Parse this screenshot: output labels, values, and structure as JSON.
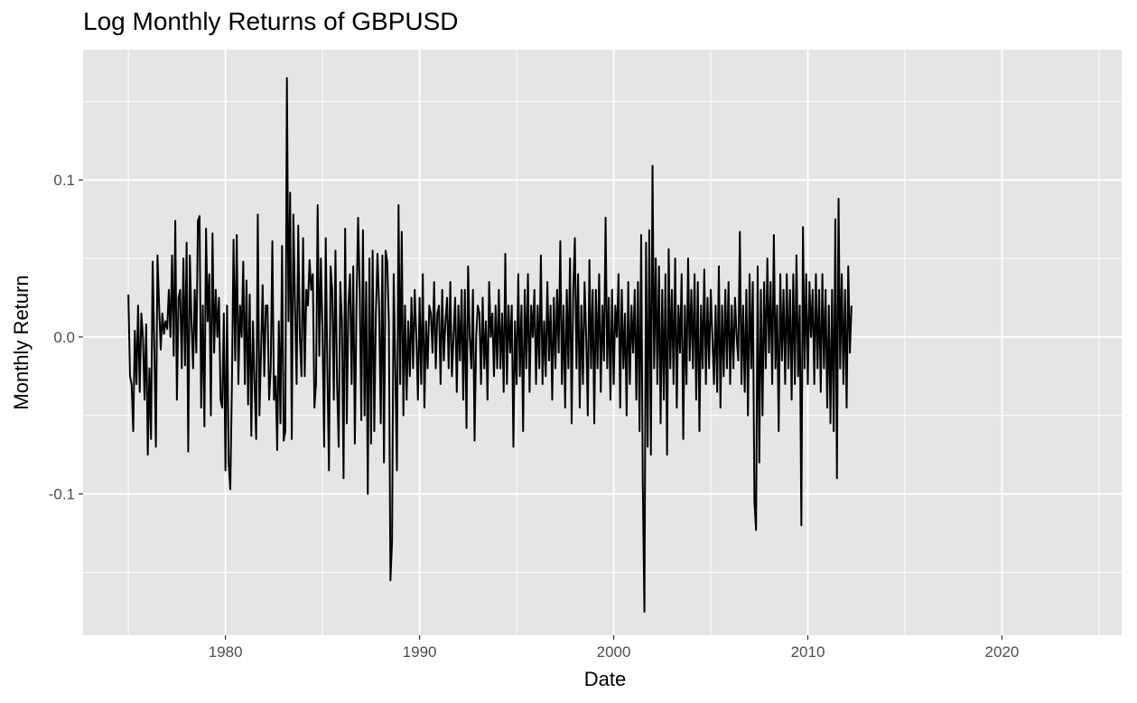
{
  "chart_data": {
    "type": "line",
    "title": "Log Monthly Returns of GBPUSD",
    "xlabel": "Date",
    "ylabel": "Monthly Return",
    "x_ticks": [
      "1980",
      "1990",
      "2000",
      "2010",
      "2020"
    ],
    "y_ticks": [
      "-0.1",
      "0.0",
      "0.1"
    ],
    "xlim": [
      "1972-09-01",
      "2026-03-01"
    ],
    "ylim": [
      -0.19,
      0.183
    ],
    "grid": true,
    "colors": {
      "panel": "#e5e5e5",
      "grid": "#ffffff",
      "line": "#000000",
      "tick_text": "#4d4d4d",
      "tick_mark": "#333333"
    },
    "series": [
      {
        "start": "1975-01",
        "values": [
          0.027,
          -0.025,
          -0.03,
          -0.06,
          0.004,
          -0.03,
          0.02,
          -0.035,
          0.015,
          0.0,
          -0.04,
          0.008,
          -0.075,
          -0.02,
          -0.065,
          0.048,
          -0.005,
          -0.07,
          0.052,
          0.02,
          -0.008,
          0.015,
          0.002,
          0.01,
          0.005,
          0.03,
          0.0,
          0.052,
          -0.012,
          0.074,
          -0.04,
          0.025,
          0.03,
          -0.02,
          0.05,
          -0.018,
          0.06,
          -0.073,
          0.052,
          0.01,
          -0.02,
          0.03,
          -0.01,
          0.074,
          0.077,
          -0.045,
          0.02,
          -0.057,
          0.069,
          0.01,
          0.04,
          -0.05,
          0.066,
          -0.01,
          0.03,
          0.0,
          0.025,
          -0.04,
          -0.045,
          0.015,
          -0.085,
          0.02,
          -0.08,
          -0.097,
          -0.03,
          0.062,
          -0.015,
          0.065,
          -0.03,
          0.02,
          0.0,
          0.048,
          -0.03,
          0.036,
          -0.043,
          0.027,
          -0.063,
          0.01,
          -0.03,
          -0.065,
          0.078,
          -0.05,
          -0.01,
          0.033,
          -0.025,
          0.02,
          0.02,
          -0.04,
          -0.02,
          0.061,
          -0.04,
          -0.025,
          -0.072,
          0.01,
          -0.055,
          0.058,
          -0.066,
          -0.06,
          0.165,
          0.01,
          0.092,
          -0.065,
          0.078,
          0.02,
          -0.03,
          0.071,
          0.0,
          -0.025,
          0.063,
          -0.025,
          0.03,
          0.02,
          0.049,
          0.03,
          0.04,
          -0.045,
          -0.03,
          0.084,
          -0.012,
          0.05,
          0.004,
          -0.07,
          0.063,
          -0.02,
          -0.085,
          0.045,
          0.03,
          -0.04,
          0.055,
          -0.03,
          -0.07,
          0.035,
          0.01,
          -0.09,
          0.069,
          -0.055,
          0.02,
          0.04,
          -0.03,
          0.045,
          -0.068,
          0.02,
          0.076,
          0.03,
          -0.053,
          0.068,
          -0.05,
          0.035,
          -0.1,
          0.05,
          -0.068,
          0.055,
          -0.06,
          0.015,
          0.053,
          0.02,
          -0.055,
          0.052,
          -0.08,
          0.055,
          0.048,
          0.01,
          -0.155,
          -0.13,
          0.04,
          -0.02,
          -0.085,
          0.084,
          -0.03,
          0.067,
          -0.05,
          0.02,
          -0.04,
          0.01,
          -0.025,
          0.025,
          -0.02,
          0.03,
          0.0,
          -0.04,
          0.025,
          -0.03,
          0.04,
          -0.045,
          0.01,
          -0.02,
          0.02,
          0.015,
          -0.01,
          0.035,
          -0.02,
          0.015,
          0.02,
          -0.03,
          0.03,
          -0.015,
          0.01,
          0.025,
          -0.02,
          0.035,
          -0.025,
          0.0,
          0.025,
          -0.035,
          0.02,
          -0.015,
          0.03,
          -0.04,
          0.03,
          -0.058,
          0.045,
          0.0,
          -0.02,
          0.03,
          -0.066,
          0.0,
          0.02,
          0.015,
          -0.03,
          0.025,
          -0.02,
          0.01,
          -0.04,
          0.035,
          0.0,
          0.015,
          -0.025,
          0.02,
          -0.02,
          0.03,
          -0.02,
          0.015,
          -0.035,
          0.053,
          -0.03,
          0.02,
          -0.01,
          0.02,
          -0.07,
          0.01,
          -0.03,
          0.04,
          -0.025,
          0.02,
          -0.06,
          0.03,
          -0.02,
          0.04,
          -0.035,
          0.02,
          0.0,
          0.03,
          -0.03,
          0.02,
          -0.02,
          0.052,
          -0.03,
          0.01,
          -0.025,
          0.035,
          -0.015,
          0.02,
          -0.04,
          0.025,
          -0.02,
          0.03,
          -0.01,
          0.061,
          -0.03,
          0.02,
          -0.045,
          0.03,
          -0.02,
          0.05,
          -0.055,
          0.03,
          0.063,
          -0.02,
          0.04,
          -0.045,
          0.02,
          -0.03,
          0.035,
          0.0,
          -0.05,
          0.049,
          -0.02,
          0.03,
          -0.055,
          0.03,
          -0.02,
          0.04,
          -0.035,
          0.02,
          -0.015,
          0.076,
          -0.02,
          0.025,
          -0.04,
          0.03,
          -0.03,
          0.02,
          0.0,
          0.04,
          -0.045,
          0.03,
          -0.02,
          0.015,
          -0.05,
          0.035,
          -0.03,
          0.02,
          -0.01,
          0.03,
          -0.04,
          0.035,
          -0.06,
          0.065,
          -0.095,
          -0.175,
          0.06,
          -0.07,
          0.068,
          -0.075,
          0.109,
          -0.02,
          0.05,
          -0.03,
          0.045,
          -0.055,
          0.03,
          -0.04,
          0.04,
          -0.075,
          0.056,
          -0.02,
          0.03,
          -0.03,
          0.05,
          -0.045,
          0.02,
          -0.01,
          0.04,
          -0.065,
          0.02,
          -0.03,
          0.05,
          -0.015,
          0.03,
          -0.02,
          0.04,
          -0.04,
          0.035,
          -0.06,
          0.02,
          -0.02,
          0.043,
          -0.03,
          0.025,
          -0.02,
          0.03,
          0.0,
          -0.03,
          0.02,
          -0.035,
          0.045,
          -0.045,
          0.02,
          -0.025,
          0.03,
          -0.02,
          0.035,
          -0.03,
          0.02,
          -0.02,
          0.025,
          0.0,
          -0.015,
          0.067,
          -0.03,
          0.02,
          -0.035,
          0.03,
          -0.05,
          0.04,
          -0.02,
          0.035,
          -0.105,
          -0.123,
          0.045,
          -0.08,
          0.03,
          -0.05,
          0.035,
          -0.02,
          0.05,
          -0.01,
          0.035,
          -0.03,
          0.065,
          -0.02,
          0.02,
          -0.06,
          0.04,
          -0.015,
          0.03,
          -0.03,
          0.04,
          -0.02,
          0.03,
          -0.04,
          0.04,
          -0.03,
          0.052,
          -0.025,
          0.02,
          -0.12,
          0.07,
          -0.02,
          0.04,
          -0.03,
          0.035,
          0.0,
          0.03,
          -0.03,
          0.04,
          -0.02,
          0.03,
          -0.035,
          0.04,
          -0.02,
          0.03,
          -0.045,
          0.02,
          -0.055,
          0.03,
          -0.06,
          0.075,
          -0.09,
          0.088,
          -0.02,
          0.04,
          -0.03,
          0.03,
          -0.045,
          0.045,
          -0.01,
          0.02
        ]
      }
    ]
  }
}
